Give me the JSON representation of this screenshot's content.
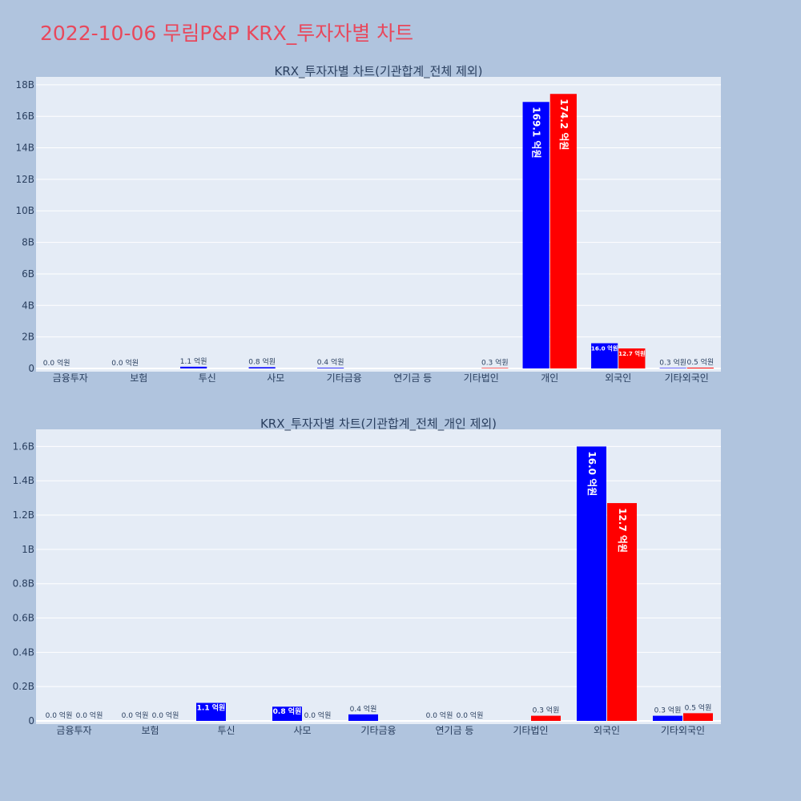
{
  "page": {
    "title": "2022-10-06 무림P&P KRX_투자자별 차트"
  },
  "colors": {
    "background": "#b0c4de",
    "plot_bg": "#e5ecf6",
    "grid": "#ffffff",
    "buy": "#0000ff",
    "sell": "#ff0000",
    "title": "#e8485c",
    "text": "#2a3f5f"
  },
  "chart_data": [
    {
      "type": "bar",
      "title": "KRX_투자자별 차트(기관합계_전체 제외)",
      "categories": [
        "금융투자",
        "보험",
        "투신",
        "사모",
        "기타금융",
        "연기금 등",
        "기타법인",
        "개인",
        "외국인",
        "기타외국인"
      ],
      "ylim": [
        0,
        18.5
      ],
      "yticks": [
        {
          "value": 0,
          "label": "0"
        },
        {
          "value": 2,
          "label": "2B"
        },
        {
          "value": 4,
          "label": "4B"
        },
        {
          "value": 6,
          "label": "6B"
        },
        {
          "value": 8,
          "label": "8B"
        },
        {
          "value": 10,
          "label": "10B"
        },
        {
          "value": 12,
          "label": "12B"
        },
        {
          "value": 14,
          "label": "14B"
        },
        {
          "value": 16,
          "label": "16B"
        },
        {
          "value": 18,
          "label": "18B"
        }
      ],
      "grid": true,
      "series": [
        {
          "color": "#0000ff",
          "values": [
            0.0,
            0.0,
            0.11,
            0.08,
            0.04,
            null,
            0.0,
            16.91,
            1.6,
            0.03
          ],
          "labels": [
            "0.0 억원",
            "0.0 억원",
            "1.1 억원",
            "0.8 억원",
            "0.4 억원",
            null,
            null,
            "169.1 억원",
            "16.0 억원",
            "0.3 억원"
          ]
        },
        {
          "color": "#ff0000",
          "values": [
            null,
            null,
            null,
            null,
            null,
            null,
            0.03,
            17.42,
            1.27,
            0.05
          ],
          "labels": [
            null,
            null,
            null,
            null,
            null,
            null,
            "0.3 억원",
            "174.2 억원",
            "12.7 억원",
            "0.5 억원"
          ]
        }
      ]
    },
    {
      "type": "bar",
      "title": "KRX_투자자별 차트(기관합계_전체_개인 제외)",
      "categories": [
        "금융투자",
        "보험",
        "투신",
        "사모",
        "기타금융",
        "연기금 등",
        "기타법인",
        "외국인",
        "기타외국인"
      ],
      "ylim": [
        0,
        1.7
      ],
      "yticks": [
        {
          "value": 0,
          "label": "0"
        },
        {
          "value": 0.2,
          "label": "0.2B"
        },
        {
          "value": 0.4,
          "label": "0.4B"
        },
        {
          "value": 0.6,
          "label": "0.6B"
        },
        {
          "value": 0.8,
          "label": "0.8B"
        },
        {
          "value": 1.0,
          "label": "1B"
        },
        {
          "value": 1.2,
          "label": "1.2B"
        },
        {
          "value": 1.4,
          "label": "1.4B"
        },
        {
          "value": 1.6,
          "label": "1.6B"
        }
      ],
      "grid": true,
      "series": [
        {
          "color": "#0000ff",
          "values": [
            0.0,
            0.0,
            0.105,
            0.083,
            0.038,
            0.0,
            null,
            1.6,
            0.03
          ],
          "labels": [
            "0.0 억원",
            "0.0 억원",
            "1.1 억원",
            "0.8 억원",
            "0.4 억원",
            "0.0 억원",
            null,
            "16.0 억원",
            "0.3 억원"
          ]
        },
        {
          "color": "#ff0000",
          "values": [
            0.0,
            0.0,
            null,
            0.0,
            null,
            0.0,
            0.03,
            1.27,
            0.045
          ],
          "labels": [
            "0.0 억원",
            "0.0 억원",
            null,
            "0.0 억원",
            null,
            "0.0 억원",
            "0.3 억원",
            "12.7 억원",
            "0.5 억원"
          ]
        }
      ]
    }
  ]
}
